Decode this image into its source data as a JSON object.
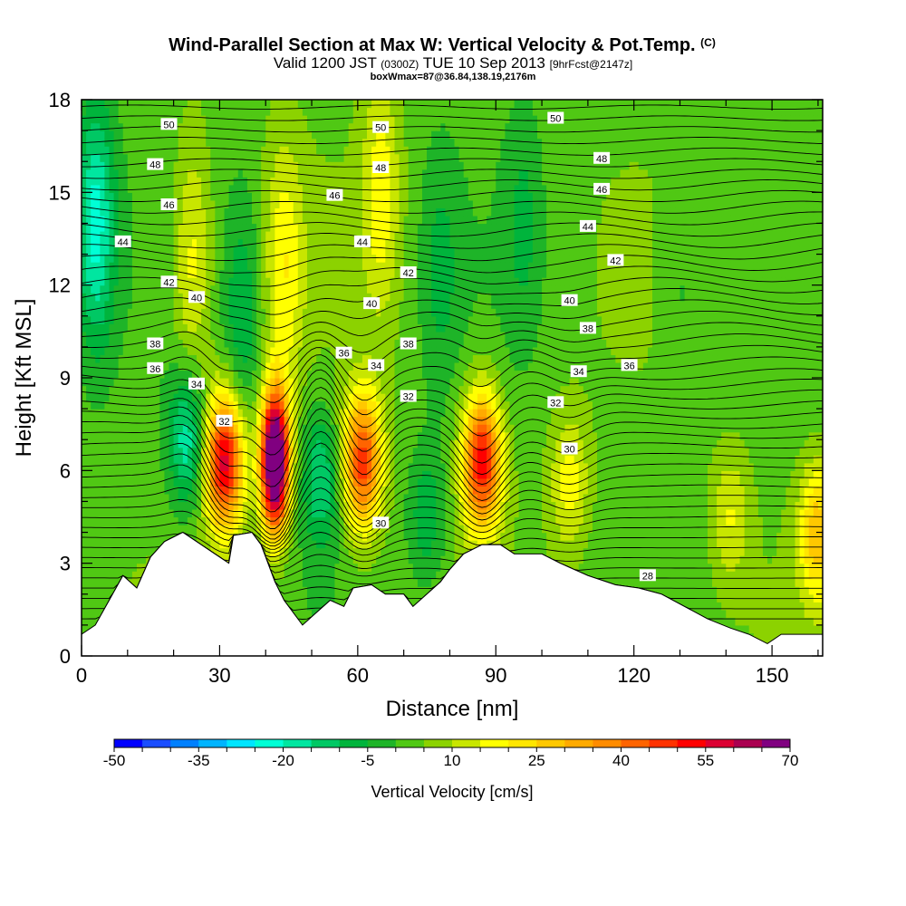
{
  "chart_data": {
    "type": "heatmap",
    "title": "Wind-Parallel Section at Max W: Vertical Velocity & Pot.Temp.",
    "title_mark": "(C)",
    "subtitle": {
      "valid": "Valid 1200 JST",
      "utc": "(0300Z)",
      "date": "TUE 10 Sep 2013",
      "fcst": "[9hrFcst@2147z]"
    },
    "annotation": "boxWmax=87@36.84,138.19,2176m",
    "xlabel": "Distance [nm]",
    "ylabel": "Height [Kft MSL]",
    "xlim": [
      0,
      161
    ],
    "ylim": [
      0,
      18
    ],
    "x_ticks": [
      "0",
      "30",
      "60",
      "90",
      "120",
      "150"
    ],
    "y_ticks": [
      "0",
      "3",
      "6",
      "9",
      "12",
      "15",
      "18"
    ],
    "colorbar": {
      "label": "Vertical Velocity [cm/s]",
      "ticks": [
        "-50",
        "-35",
        "-20",
        "-5",
        "10",
        "25",
        "40",
        "55",
        "70"
      ],
      "min": -50,
      "max": 70,
      "step": 5,
      "colors": [
        "#0000ff",
        "#1a4dff",
        "#0080ff",
        "#00b4ff",
        "#00e5ff",
        "#00ffd5",
        "#00e6a0",
        "#00c864",
        "#00b43c",
        "#1eb428",
        "#50c814",
        "#8cd200",
        "#c8e600",
        "#ffff00",
        "#ffe600",
        "#ffc800",
        "#ffaa00",
        "#ff8c00",
        "#ff6400",
        "#ff3200",
        "#ff0000",
        "#dc0032",
        "#aa0050",
        "#800080"
      ]
    },
    "contour_variable": "Potential Temperature",
    "contour_labels": [
      {
        "text": "50",
        "x": 19,
        "y": 17.2
      },
      {
        "text": "48",
        "x": 16,
        "y": 15.9
      },
      {
        "text": "46",
        "x": 19,
        "y": 14.6
      },
      {
        "text": "44",
        "x": 9,
        "y": 13.4
      },
      {
        "text": "42",
        "x": 19,
        "y": 12.1
      },
      {
        "text": "40",
        "x": 25,
        "y": 11.6
      },
      {
        "text": "38",
        "x": 16,
        "y": 10.1
      },
      {
        "text": "36",
        "x": 16,
        "y": 9.3
      },
      {
        "text": "34",
        "x": 25,
        "y": 8.8
      },
      {
        "text": "32",
        "x": 31,
        "y": 7.6
      },
      {
        "text": "50",
        "x": 65,
        "y": 17.1
      },
      {
        "text": "48",
        "x": 65,
        "y": 15.8
      },
      {
        "text": "46",
        "x": 55,
        "y": 14.9
      },
      {
        "text": "44",
        "x": 61,
        "y": 13.4
      },
      {
        "text": "42",
        "x": 71,
        "y": 12.4
      },
      {
        "text": "40",
        "x": 63,
        "y": 11.4
      },
      {
        "text": "38",
        "x": 71,
        "y": 10.1
      },
      {
        "text": "36",
        "x": 57,
        "y": 9.8
      },
      {
        "text": "34",
        "x": 64,
        "y": 9.4
      },
      {
        "text": "32",
        "x": 71,
        "y": 8.4
      },
      {
        "text": "30",
        "x": 65,
        "y": 4.3
      },
      {
        "text": "50",
        "x": 103,
        "y": 17.4
      },
      {
        "text": "48",
        "x": 113,
        "y": 16.1
      },
      {
        "text": "46",
        "x": 113,
        "y": 15.1
      },
      {
        "text": "44",
        "x": 110,
        "y": 13.9
      },
      {
        "text": "42",
        "x": 116,
        "y": 12.8
      },
      {
        "text": "40",
        "x": 106,
        "y": 11.5
      },
      {
        "text": "38",
        "x": 110,
        "y": 10.6
      },
      {
        "text": "36",
        "x": 119,
        "y": 9.4
      },
      {
        "text": "34",
        "x": 108,
        "y": 9.2
      },
      {
        "text": "32",
        "x": 103,
        "y": 8.2
      },
      {
        "text": "30",
        "x": 106,
        "y": 6.7
      },
      {
        "text": "28",
        "x": 123,
        "y": 2.6
      }
    ],
    "terrain_kft": [
      [
        0,
        0.7
      ],
      [
        3,
        1.0
      ],
      [
        6,
        1.8
      ],
      [
        9,
        2.6
      ],
      [
        12,
        2.2
      ],
      [
        15,
        3.2
      ],
      [
        18,
        3.7
      ],
      [
        22,
        4.0
      ],
      [
        26,
        3.6
      ],
      [
        29,
        3.3
      ],
      [
        32,
        3.0
      ],
      [
        33,
        3.9
      ],
      [
        37,
        4.0
      ],
      [
        39,
        3.6
      ],
      [
        42,
        2.4
      ],
      [
        44,
        1.8
      ],
      [
        46,
        1.4
      ],
      [
        48,
        1.0
      ],
      [
        51,
        1.4
      ],
      [
        54,
        1.8
      ],
      [
        57,
        1.6
      ],
      [
        59,
        2.2
      ],
      [
        63,
        2.3
      ],
      [
        66,
        2.0
      ],
      [
        70,
        2.0
      ],
      [
        72,
        1.6
      ],
      [
        75,
        2.0
      ],
      [
        78,
        2.4
      ],
      [
        80,
        2.8
      ],
      [
        83,
        3.3
      ],
      [
        87,
        3.6
      ],
      [
        91,
        3.6
      ],
      [
        94,
        3.3
      ],
      [
        100,
        3.3
      ],
      [
        104,
        3.0
      ],
      [
        110,
        2.6
      ],
      [
        116,
        2.3
      ],
      [
        121,
        2.2
      ],
      [
        126,
        2.0
      ],
      [
        131,
        1.6
      ],
      [
        136,
        1.2
      ],
      [
        141,
        0.9
      ],
      [
        145,
        0.7
      ],
      [
        149,
        0.4
      ],
      [
        152,
        0.7
      ],
      [
        161,
        0.7
      ]
    ],
    "updrafts_cm_s": [
      {
        "x": 42,
        "z": 6.3,
        "w": 87
      },
      {
        "x": 31,
        "z": 6.3,
        "w": 55
      },
      {
        "x": 61,
        "z": 6.3,
        "w": 45
      },
      {
        "x": 87,
        "z": 6.3,
        "w": 50
      },
      {
        "x": 106,
        "z": 5.6,
        "w": 15
      },
      {
        "x": 24,
        "z": 12.8,
        "w": 15
      },
      {
        "x": 44,
        "z": 12.6,
        "w": 15
      },
      {
        "x": 65,
        "z": 15.0,
        "w": 15
      },
      {
        "x": 160,
        "z": 4.0,
        "w": 25
      },
      {
        "x": 141,
        "z": 4.5,
        "w": 12
      }
    ],
    "downdrafts_cm_s": [
      {
        "x": 3,
        "z": 14.0,
        "w": -25
      },
      {
        "x": 23,
        "z": 7.0,
        "w": -22
      },
      {
        "x": 52,
        "z": 5.8,
        "w": -18
      },
      {
        "x": 35,
        "z": 11.0,
        "w": -12
      },
      {
        "x": 75,
        "z": 4.5,
        "w": -12
      },
      {
        "x": 78,
        "z": 12.5,
        "w": -8
      },
      {
        "x": 96,
        "z": 14.0,
        "w": -8
      },
      {
        "x": 130,
        "z": 12.0,
        "w": -5
      }
    ]
  }
}
